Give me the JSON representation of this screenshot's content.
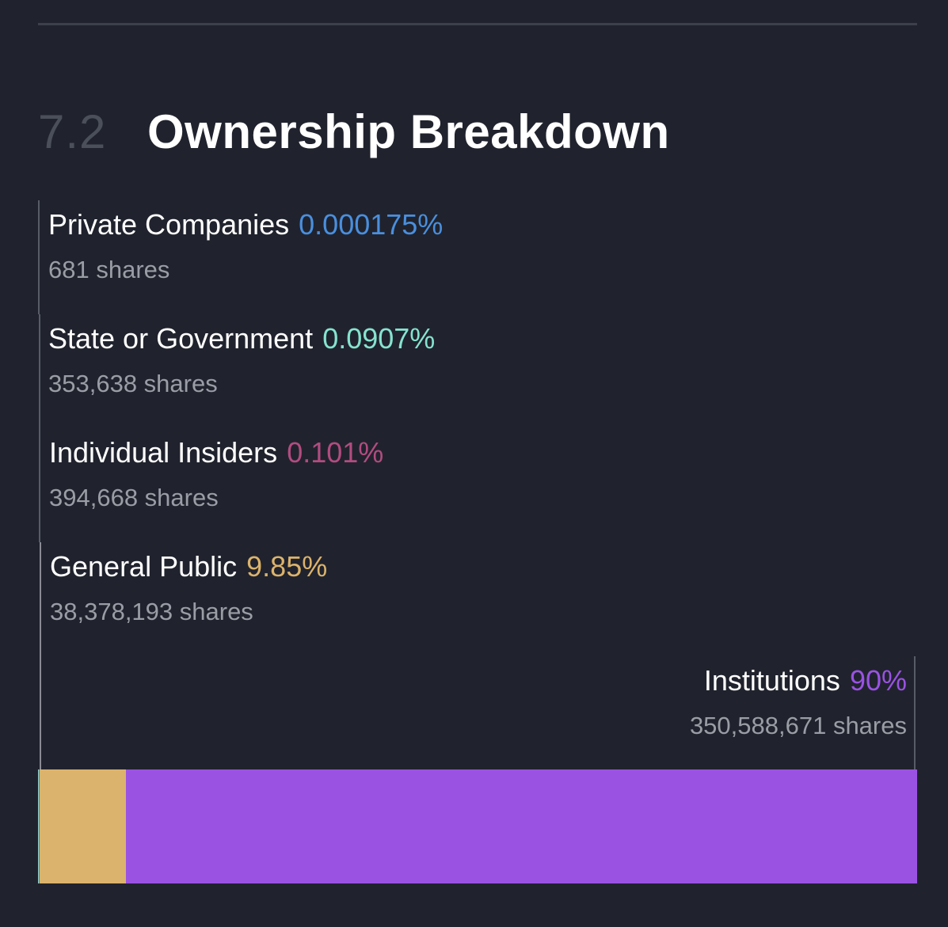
{
  "section": {
    "number": "7.2",
    "title": "Ownership Breakdown"
  },
  "chart_data": {
    "type": "bar",
    "orientation": "horizontal-stacked",
    "unit": "%",
    "categories": [
      "Private Companies",
      "State or Government",
      "Individual Insiders",
      "General Public",
      "Institutions"
    ],
    "values": [
      0.000175,
      0.0907,
      0.101,
      9.85,
      90
    ],
    "entries": [
      {
        "label": "Private Companies",
        "percent_text": "0.000175%",
        "value": 0.000175,
        "shares_text": "681 shares",
        "color": "#4a8fde"
      },
      {
        "label": "State or Government",
        "percent_text": "0.0907%",
        "value": 0.0907,
        "shares_text": "353,638 shares",
        "color": "#86e3cf"
      },
      {
        "label": "Individual Insiders",
        "percent_text": "0.101%",
        "value": 0.101,
        "shares_text": "394,668 shares",
        "color": "#b24c80"
      },
      {
        "label": "General Public",
        "percent_text": "9.85%",
        "value": 9.85,
        "shares_text": "38,378,193 shares",
        "color": "#dcb36c"
      },
      {
        "label": "Institutions",
        "percent_text": "90%",
        "value": 90,
        "shares_text": "350,588,671 shares",
        "color": "#9a52e3"
      }
    ]
  }
}
